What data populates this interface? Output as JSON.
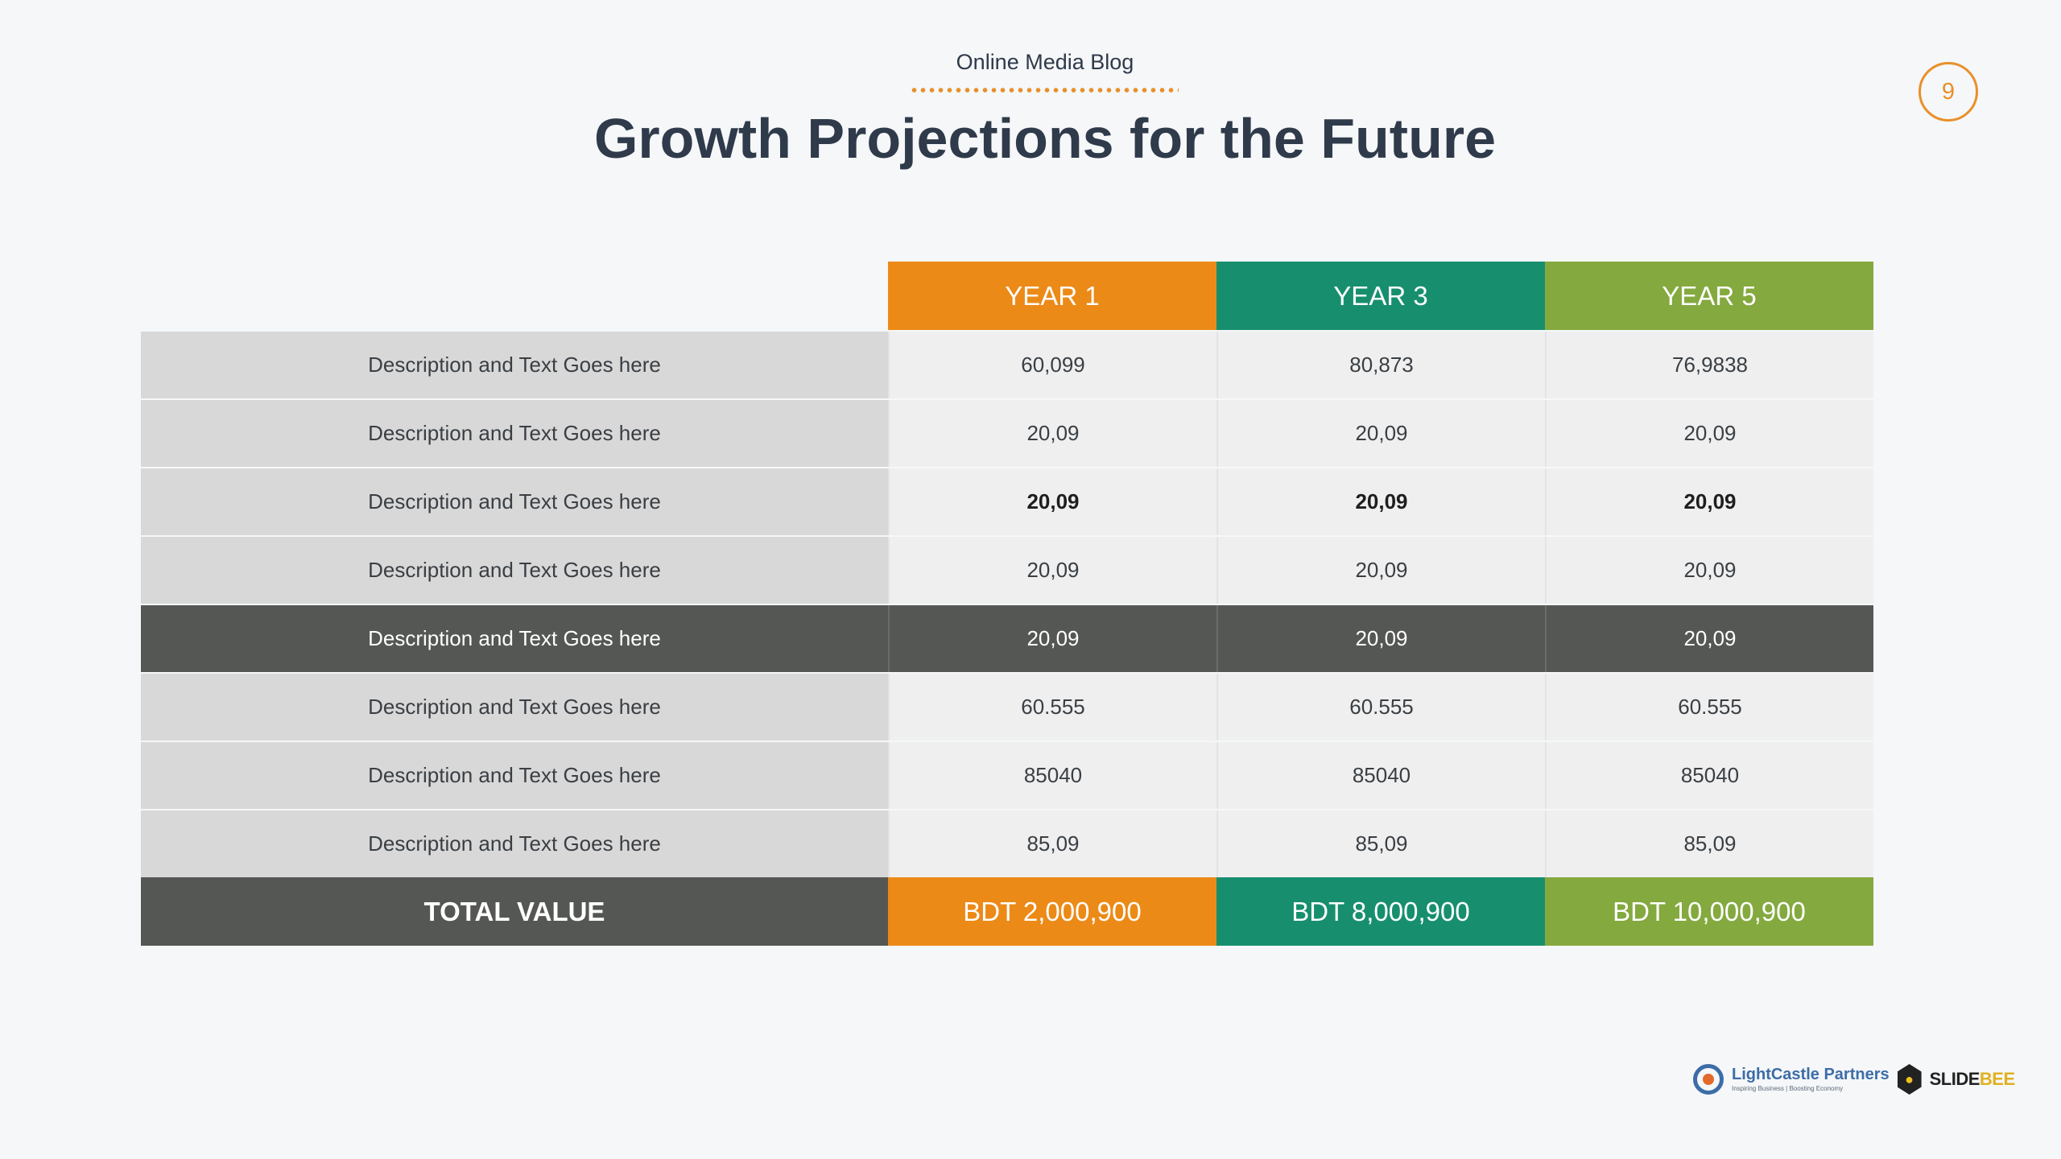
{
  "header": {
    "subtitle": "Online Media Blog",
    "title": "Growth Projections for the Future",
    "page_number": "9"
  },
  "table": {
    "columns": [
      "YEAR 1",
      "YEAR 3",
      "YEAR 5"
    ],
    "column_colors": [
      "#ec8a17",
      "#178f6e",
      "#84a93f"
    ],
    "rows": [
      {
        "label": "Description and Text Goes here",
        "values": [
          "60,099",
          "80,873",
          "76,9838"
        ]
      },
      {
        "label": "Description and Text Goes here",
        "values": [
          "20,09",
          "20,09",
          "20,09"
        ]
      },
      {
        "label": "Description and Text Goes here",
        "values": [
          "20,09",
          "20,09",
          "20,09"
        ]
      },
      {
        "label": "Description and Text Goes here",
        "values": [
          "20,09",
          "20,09",
          "20,09"
        ]
      },
      {
        "label": "Description and Text Goes here",
        "values": [
          "20,09",
          "20,09",
          "20,09"
        ]
      },
      {
        "label": "Description and Text Goes here",
        "values": [
          "60.555",
          "60.555",
          "60.555"
        ]
      },
      {
        "label": "Description and Text Goes here",
        "values": [
          "85040",
          "85040",
          "85040"
        ]
      },
      {
        "label": "Description and Text Goes here",
        "values": [
          "85,09",
          "85,09",
          "85,09"
        ]
      }
    ],
    "total": {
      "label": "TOTAL VALUE",
      "values": [
        "BDT 2,000,900",
        "BDT 8,000,900",
        "BDT 10,000,900"
      ]
    }
  },
  "footer": {
    "logo1_name": "LightCastle Partners",
    "logo1_tagline": "Inspiring Business | Boosting Economy",
    "logo2_name_a": "SLIDE",
    "logo2_name_b": "BEE"
  }
}
